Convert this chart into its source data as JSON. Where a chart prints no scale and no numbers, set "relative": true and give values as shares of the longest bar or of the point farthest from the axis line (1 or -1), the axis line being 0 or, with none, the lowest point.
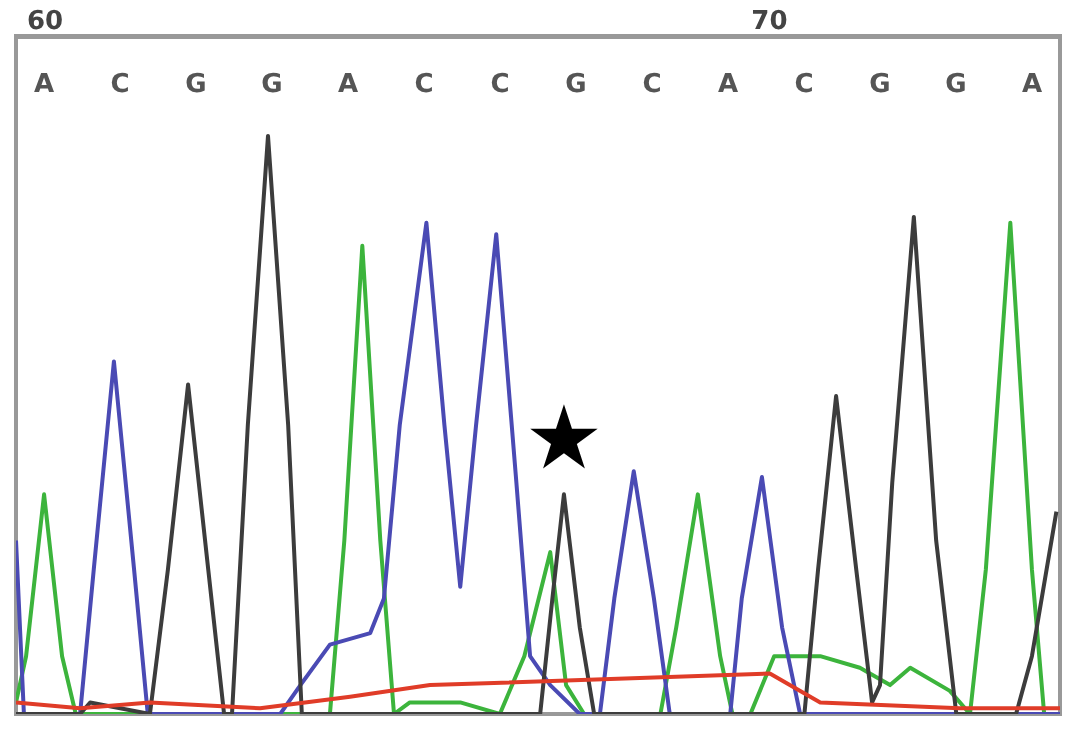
{
  "chart_data": {
    "type": "line",
    "relative": true,
    "xlim": [
      59.61,
      74.11
    ],
    "xticks": [
      60,
      {
        "value": 70.06,
        "label": "70"
      }
    ],
    "grid": false,
    "marker": "none",
    "line_style": "solid",
    "series": [
      {
        "color": "#3cb43c",
        "x": [
          59.61,
          59.75,
          60,
          60.25,
          60.44,
          63.56,
          63.97,
          64.17,
          64.42,
          64.67,
          64.86,
          65.08,
          65.78,
          66.33,
          66.67,
          67.03,
          67.25,
          67.5,
          68.56,
          68.78,
          69.08,
          69.39,
          69.56,
          69.81,
          70.14,
          70.78,
          71.33,
          71.75,
          72.03,
          72.58,
          72.86,
          73.08,
          73.42,
          73.72,
          73.89
        ],
        "values": [
          0.02,
          0.1,
          0.38,
          0.1,
          0.0,
          0.0,
          0.0,
          0.3,
          0.81,
          0.3,
          0.0,
          0.02,
          0.02,
          0.0,
          0.1,
          0.28,
          0.05,
          0.0,
          0.0,
          0.15,
          0.38,
          0.1,
          0.0,
          0.0,
          0.1,
          0.1,
          0.08,
          0.05,
          0.08,
          0.04,
          0.0,
          0.25,
          0.85,
          0.25,
          0.0
        ]
      },
      {
        "color": "#4a4ab4",
        "x": [
          59.61,
          59.72,
          60.5,
          60.69,
          60.97,
          61.25,
          61.44,
          63.28,
          63.56,
          63.97,
          64.53,
          64.72,
          64.94,
          65.31,
          65.56,
          65.78,
          66,
          66.28,
          66.56,
          66.75,
          67.03,
          67.44,
          67.72,
          67.92,
          68.19,
          68.47,
          68.69,
          69.53,
          69.69,
          69.97,
          70.25,
          70.5,
          74.11
        ],
        "values": [
          0.3,
          0.0,
          0.0,
          0.25,
          0.61,
          0.25,
          0.0,
          0.0,
          0.05,
          0.12,
          0.14,
          0.2,
          0.5,
          0.85,
          0.5,
          0.22,
          0.5,
          0.83,
          0.4,
          0.1,
          0.05,
          0.0,
          0.0,
          0.2,
          0.42,
          0.2,
          0.0,
          0.0,
          0.2,
          0.41,
          0.15,
          0.0,
          0.0
        ]
      },
      {
        "color": "#3c3c3c",
        "x": [
          59.61,
          60.5,
          60.64,
          61.47,
          61.72,
          62,
          62.28,
          62.5,
          62.61,
          62.83,
          63.11,
          63.39,
          63.58,
          66.89,
          67.06,
          67.22,
          67.44,
          67.64,
          70.56,
          70.75,
          71,
          71.28,
          71.5,
          71.61,
          71.78,
          72.08,
          72.39,
          72.67,
          73.5,
          73.72,
          74.06
        ],
        "values": [
          0.0,
          0.0,
          0.02,
          0.0,
          0.25,
          0.57,
          0.25,
          0.0,
          0.0,
          0.5,
          1.0,
          0.5,
          0.0,
          0.0,
          0.2,
          0.38,
          0.15,
          0.0,
          0.0,
          0.25,
          0.55,
          0.25,
          0.02,
          0.05,
          0.4,
          0.86,
          0.3,
          0.0,
          0.0,
          0.1,
          0.35
        ]
      },
      {
        "color": "#e03c28",
        "x": [
          59.61,
          60.5,
          61.47,
          63,
          64.25,
          65.36,
          70.08,
          70.78,
          72.72,
          74.11
        ],
        "values": [
          0.02,
          0.01,
          0.02,
          0.01,
          0.03,
          0.05,
          0.07,
          0.02,
          0.01,
          0.01
        ]
      }
    ],
    "annotations": [
      "A",
      "C",
      "G",
      "G",
      "A",
      "C",
      "C",
      "G",
      "C",
      "A",
      "C",
      "G",
      "G",
      "A",
      {
        "text": "★",
        "x": 67.22,
        "y": 0.38
      }
    ]
  }
}
